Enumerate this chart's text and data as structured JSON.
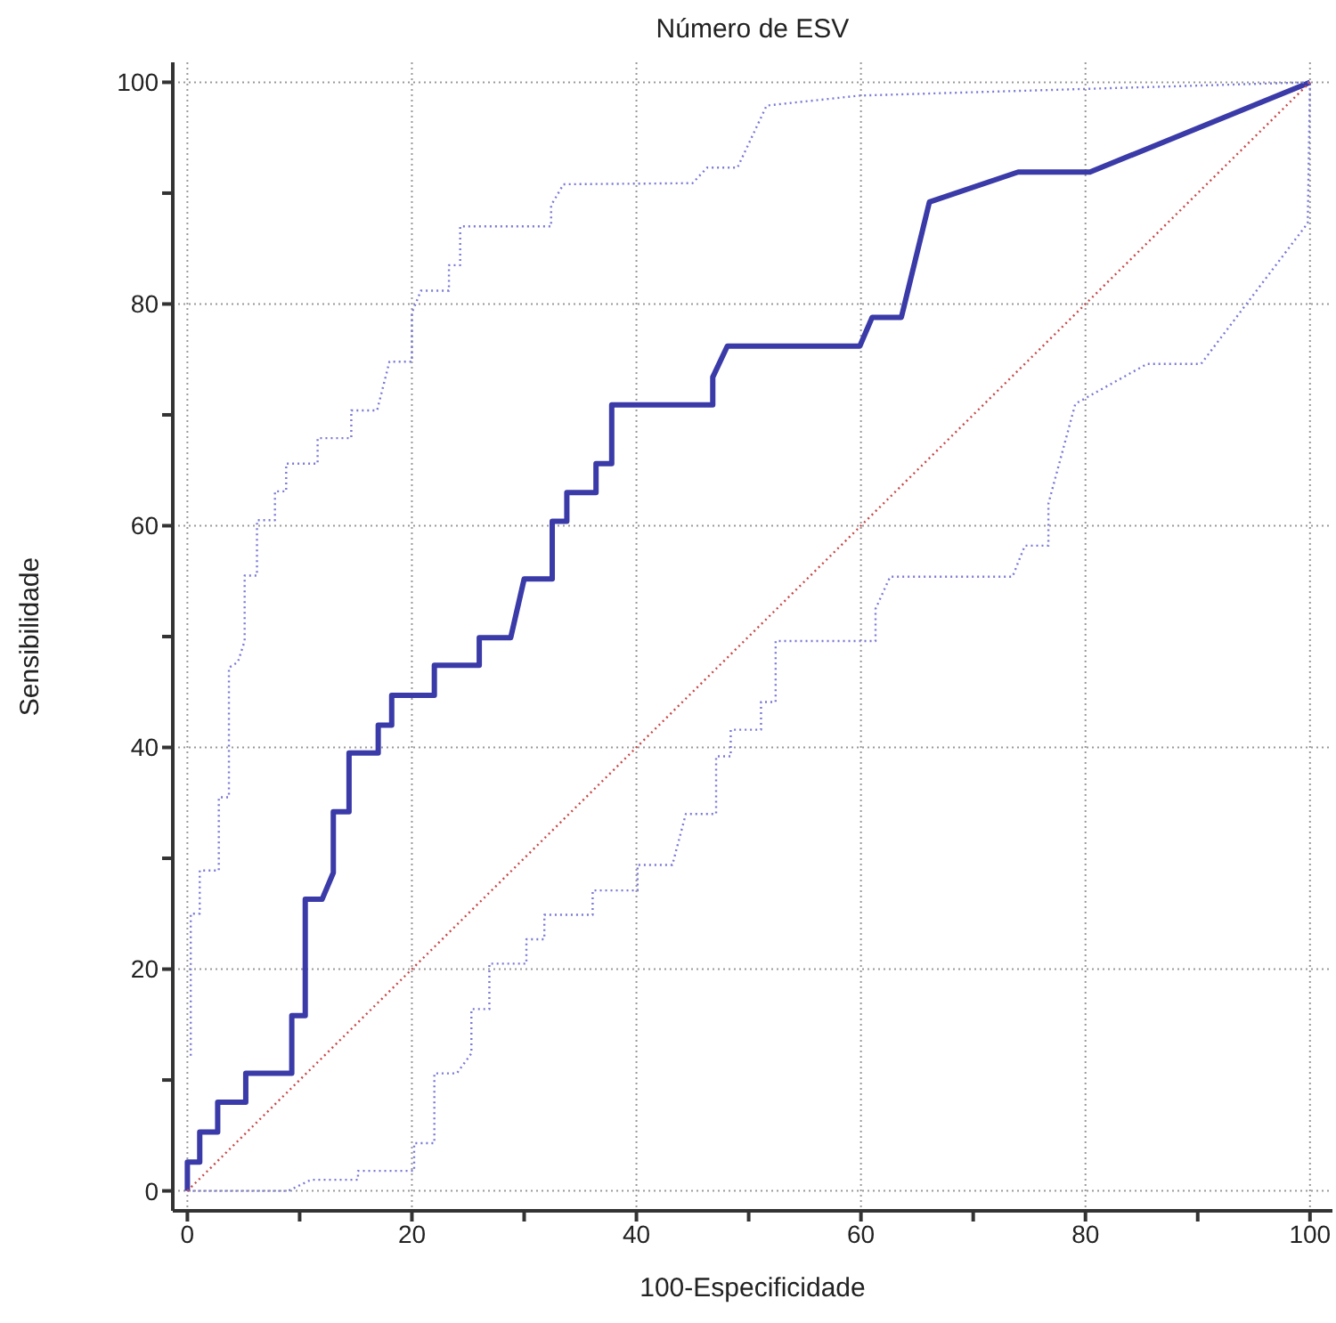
{
  "chart_data": {
    "type": "line",
    "title": "Número de ESV",
    "xlabel": "100-Especificidade",
    "ylabel": "Sensibilidade",
    "xlim": [
      -1.3,
      102
    ],
    "ylim": [
      -1.8,
      101.8
    ],
    "xticks": [
      0,
      {
        "value": 10,
        "label": null
      },
      20,
      {
        "value": 30,
        "label": null
      },
      40,
      {
        "value": 50,
        "label": null
      },
      60,
      {
        "value": 70,
        "label": null
      },
      80,
      {
        "value": 90,
        "label": null
      },
      100
    ],
    "yticks": [
      0,
      {
        "value": 10,
        "label": null
      },
      20,
      {
        "value": 30,
        "label": null
      },
      40,
      {
        "value": 50,
        "label": null
      },
      60,
      {
        "value": 70,
        "label": null
      },
      80,
      {
        "value": 90,
        "label": null
      },
      100
    ],
    "grid": true,
    "marker": "none",
    "series": [
      {
        "color": "#3a3aa8",
        "line_style": "solid",
        "x": [
          0,
          0,
          1.1,
          1.1,
          2.7,
          2.7,
          5.2,
          5.2,
          9.3,
          9.3,
          10.5,
          10.5,
          12,
          13,
          13,
          14.4,
          14.4,
          17,
          17,
          18.2,
          18.2,
          22,
          22,
          26,
          26,
          28.8,
          30,
          32.5,
          32.5,
          33.8,
          33.8,
          36.4,
          36.4,
          37.8,
          37.8,
          46.8,
          46.8,
          48.1,
          59.9,
          61,
          63.6,
          66.1,
          74,
          80.4,
          100
        ],
        "values": [
          0,
          2.6,
          2.6,
          5.3,
          5.3,
          8,
          8,
          10.6,
          10.6,
          15.8,
          15.8,
          26.3,
          26.3,
          28.7,
          34.2,
          34.2,
          39.5,
          39.5,
          42,
          42,
          44.7,
          44.7,
          47.4,
          47.4,
          49.9,
          49.9,
          55.2,
          55.2,
          60.4,
          60.4,
          63,
          63,
          65.6,
          65.6,
          70.9,
          70.9,
          73.4,
          76.2,
          76.2,
          78.8,
          78.8,
          89.2,
          91.9,
          91.9,
          100
        ]
      },
      {
        "color": "#7a7ad6",
        "line_style": "dotted",
        "x": [
          0.3,
          0.3,
          1.1,
          1.1,
          2.8,
          2.8,
          3.7,
          3.7,
          4.5,
          5.1,
          5.1,
          6.2,
          6.2,
          7.8,
          7.8,
          8.8,
          8.8,
          11.6,
          11.6,
          14.6,
          14.6,
          16.9,
          18,
          20,
          20,
          20.8,
          23.3,
          23.3,
          24.3,
          24.3,
          32.4,
          32.4,
          33.5,
          45,
          46.3,
          49,
          51.6,
          59.9,
          100
        ],
        "values": [
          12.2,
          25,
          25,
          28.9,
          28.9,
          35.5,
          35.5,
          47.2,
          47.7,
          49.6,
          55.5,
          55.5,
          60.5,
          60.5,
          63.1,
          63.1,
          65.6,
          65.6,
          67.9,
          67.9,
          70.4,
          70.4,
          74.8,
          74.8,
          79.2,
          81.2,
          81.2,
          83.5,
          83.5,
          87,
          87,
          88.9,
          90.8,
          90.9,
          92.3,
          92.3,
          97.9,
          98.8,
          100
        ]
      },
      {
        "color": "#7a7ad6",
        "line_style": "dotted",
        "x": [
          0,
          9,
          11,
          15.2,
          15.2,
          20.2,
          20.2,
          22,
          22,
          24,
          25.3,
          25.3,
          26.9,
          26.9,
          30.2,
          30.2,
          31.8,
          31.8,
          36.1,
          36.1,
          40.1,
          40.1,
          43.2,
          44.4,
          47.1,
          47.1,
          48.4,
          48.4,
          51.1,
          51.1,
          52.4,
          52.4,
          61.3,
          61.3,
          62.6,
          73.5,
          74.6,
          76.7,
          76.7,
          79.1,
          85.5,
          90.3,
          99.8,
          100
        ],
        "values": [
          0,
          0,
          1,
          1,
          1.8,
          1.8,
          4.3,
          4.3,
          10.6,
          10.6,
          12.4,
          16.4,
          16.4,
          20.5,
          20.5,
          22.7,
          22.7,
          24.9,
          24.9,
          27.1,
          27.1,
          29.4,
          29.4,
          34,
          34,
          39.2,
          39.2,
          41.6,
          41.6,
          44.1,
          44.1,
          49.6,
          49.6,
          52.5,
          55.4,
          55.4,
          58.2,
          58.2,
          62,
          71,
          74.6,
          74.6,
          87.3,
          100
        ]
      },
      {
        "color": "#c84848",
        "line_style": "dotted",
        "x": [
          0,
          100
        ],
        "values": [
          0,
          100
        ]
      }
    ]
  }
}
